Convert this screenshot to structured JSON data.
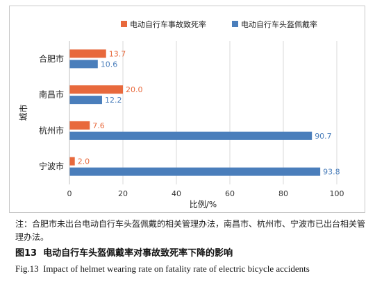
{
  "chart_data": {
    "type": "bar",
    "orientation": "horizontal",
    "categories": [
      "合肥市",
      "南昌市",
      "杭州市",
      "宁波市"
    ],
    "series": [
      {
        "name": "电动自行车事故致死率",
        "color": "#E8693C",
        "values": [
          13.7,
          20.0,
          7.6,
          2.0
        ]
      },
      {
        "name": "电动自行车头盔佩戴率",
        "color": "#4A7EBB",
        "values": [
          10.6,
          12.2,
          90.7,
          93.8
        ]
      }
    ],
    "value_labels": [
      [
        "13.7",
        "20.0",
        "7.6",
        "2.0"
      ],
      [
        "10.6",
        "12.2",
        "90.7",
        "93.8"
      ]
    ],
    "xlabel": "比例/%",
    "ylabel": "城市",
    "xlim": [
      0,
      100
    ],
    "xticks": [
      0,
      20,
      40,
      60,
      80,
      100
    ],
    "grid": "vertical",
    "legend_position": "top"
  },
  "note": "注：合肥市未出台电动自行车头盔佩戴的相关管理办法，南昌市、杭州市、宁波市已出台相关管理办法。",
  "figure": {
    "label_cn": "图13",
    "title_cn": "电动自行车头盔佩戴率对事故致死率下降的影响",
    "label_en": "Fig.13",
    "title_en": "Impact of helmet wearing rate on fatality rate of electric bicycle accidents"
  }
}
